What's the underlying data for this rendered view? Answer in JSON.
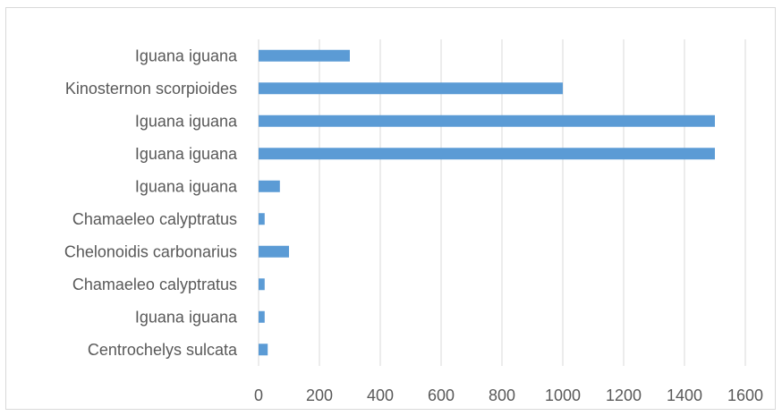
{
  "chart_data": {
    "type": "bar",
    "orientation": "horizontal",
    "title": "",
    "xlabel": "",
    "ylabel": "",
    "categories": [
      "Iguana iguana",
      "Kinosternon scorpioides",
      "Iguana iguana",
      "Iguana iguana",
      "Iguana iguana",
      "Chamaeleo calyptratus",
      "Chelonoidis carbonarius",
      "Chamaeleo calyptratus",
      "Iguana iguana",
      "Centrochelys sulcata"
    ],
    "values": [
      300,
      1000,
      1500,
      1500,
      70,
      20,
      100,
      20,
      20,
      30
    ],
    "xlim": [
      0,
      1600
    ],
    "xticks": [
      0,
      200,
      400,
      600,
      800,
      1000,
      1200,
      1400,
      1600
    ],
    "grid": "vertical",
    "legend": "none",
    "bar_color": "#5b9bd5",
    "grid_color": "#d9d9d9",
    "text_color": "#595959"
  }
}
